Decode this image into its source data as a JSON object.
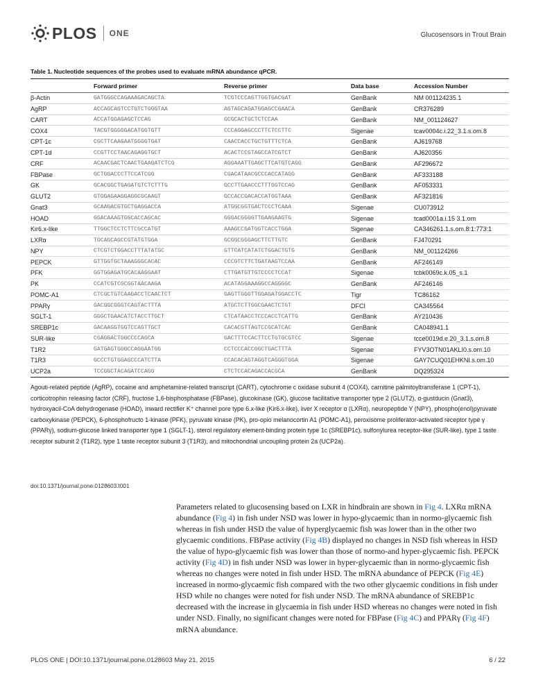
{
  "header": {
    "logo_text": "PLOS",
    "logo_suffix": "ONE",
    "running_title": "Glucosensors in Trout Brain"
  },
  "table": {
    "caption": "Table 1.  Nucleotide sequences of the probes used to evaluate mRNA abundance qPCR.",
    "headers": [
      "",
      "Forward primer",
      "Reverse primer",
      "Data base",
      "Accession Number"
    ],
    "rows": [
      [
        "β-Actin",
        "GATGGGCCAGAAAGACAGCTA",
        "TCGTCCCAGTTGGTGACGAT",
        "GenBank",
        "NM 001124235.1"
      ],
      [
        "AgRP",
        "ACCAGCAGTCCTGTCTGGGTAA",
        "AGTAGCAGATGGAGCCGAACA",
        "GenBank",
        "CR376289"
      ],
      [
        "CART",
        "ACCATGGAGAGCTCCAG",
        "GCGCACTGCTCTCCAA",
        "GenBank",
        "NM_001124627"
      ],
      [
        "COX4",
        "TACGTGGGGGACATGGTGTT",
        "CCCAGGAGCCCTTCTCCTTC",
        "Sigenae",
        "tcav0004c.i.22_3.1.s.om.8"
      ],
      [
        "CPT-1c",
        "CGCTTCAAGAATGGGGTGAT",
        "CAACCACCTGCTGTTTCTCA",
        "GenBank",
        "AJ619768"
      ],
      [
        "CPT-1d",
        "CCGTTCCTAACAGAGGTGCT",
        "ACACTCCGTAGCCATCGTCT",
        "GenBank",
        "AJ620356"
      ],
      [
        "CRF",
        "ACAACGACTCAACTGAAGATCTCG",
        "AGGAAATTGAGCTTCATGTCAGG",
        "GenBank",
        "AF296672"
      ],
      [
        "FBPase",
        "GCTGGACCCTTCCATCGG",
        "CGACATAACGCCCACCATAGG",
        "GenBank",
        "AF333188"
      ],
      [
        "GK",
        "GCACGGCTGAGATGTCTCTTTG",
        "GCCTTGAACCCTTTGGTCCAG",
        "GenBank",
        "AF053331"
      ],
      [
        "GLUT2",
        "GTGGAGAAGGAGGCGCAAGT",
        "GCCACCGACACCATGGTAAA",
        "GenBank",
        "AF321816"
      ],
      [
        "Gnat3",
        "GCAAGACGTGCTGAGGACCA",
        "ATGGCGGTGACTCCCTCAAA",
        "Sigenae",
        "CU073912"
      ],
      [
        "HOAD",
        "GGACAAAGTGGCACCAGCAC",
        "GGGACGGGGTTGAAGAAGTG",
        "Sigenae",
        "tcad0001a.i.15 3.1.om"
      ],
      [
        "Kir6.x-like",
        "TTGGCTCCTCTTCGCCATGT",
        "AAAGCCGATGGTCACCTGGA",
        "Sigenae",
        "CA346261.1.s.om.8:1:773:1"
      ],
      [
        "LXRα",
        "TGCAGCAGCCGTATGTGGA",
        "GCGGCGGGAGCTTCTTGTC",
        "GenBank",
        "FJ470291"
      ],
      [
        "NPY",
        "CTCGTCTGGACCTTTATATGC",
        "GTTCATCATATCTGGACTGTG",
        "GenBank",
        "NM_001124266"
      ],
      [
        "PEPCK",
        "GTTGGTGCTAAAGGGCACAC",
        "CCCGTCTTCTGATAAGTCCAA",
        "GenBank",
        "AF246149"
      ],
      [
        "PFK",
        "GGTGGAGATGCACAAGGAAT",
        "CTTGATGTTGTCCCCTCCAT",
        "Sigenae",
        "tcbk0069c.k.05_s.1"
      ],
      [
        "PK",
        "CCATCGTCGCGGTAACAAGA",
        "ACATAGGAAAGGCCAGGGGC",
        "GenBank",
        "AF246146"
      ],
      [
        "POMC-A1",
        "CTCGCTGTCAAGACCTCAACTCT",
        "GAGTTGGGTTGGAGATGGACCTC",
        "Tigr",
        "TC86162"
      ],
      [
        "PPARγ",
        "GACGGCGGGTCAGTACTTTA",
        "ATGCTCTTGGCGAACTCTGT",
        "DFCI",
        "CA345564"
      ],
      [
        "SGLT-1",
        "GGGCTGAACATCTACCTTGCT",
        "CTCATAACCTCCCACCTCATTG",
        "GenBank",
        "AY210436"
      ],
      [
        "SREBP1c",
        "GACAAGGTGGTCCAGTTGCT",
        "CACACGTTAGTCCGCATCAC",
        "GenBank",
        "CA048941.1"
      ],
      [
        "SUR-like",
        "CGAGGACTGGCCCCAGCA",
        "GACTTTCCACTTCCTGTGCGTCC",
        "Sigenae",
        "tcce0019d.e.20_3.1.s.om.8"
      ],
      [
        "T1R2",
        "GATGAGTGGGCCAGGAATGG",
        "CCTCCCACCGGCTGACTTTA",
        "Sigenae",
        "FYV3OTN01AKLI0.s.om.10"
      ],
      [
        "T1R3",
        "GCCCTGTGGAGCCCATCTTA",
        "CCACACAGTAGGTCAGGGTGGA",
        "Sigenae",
        "GAY7CUQ01EHKNI.s.om.10"
      ],
      [
        "UCP2a",
        "TCCGGCTACAGATCCAGG",
        "CTCTCCACAGACCACGCA",
        "GenBank",
        "DQ295324"
      ]
    ]
  },
  "footnote": "Agouti-related peptide (AgRP), cocaine and amphetamine-related transcript (CART), cytochrome c oxidase subunit 4 (COX4), carnitine palmitoyltransferase 1 (CPT-1), corticotrophin releasing factor (CRF), fructose 1,6-bisphosphatase (FBPase), glucokinase (GK), glucose facilitative transporter type 2 (GLUT2), α-gustducin (Gnat3), hydroxyacil-CoA dehydrogenase (HOAD), inward rectifier K⁺ channel pore type 6.x-like (Kir6.x-like), liver X receptor α (LXRα), neuropeptide Y (NPY), phospho(enol)pyruvate carboxykinase (PEPCK), 6-phosphofructo 1-kinase (PFK), pyruvate kinase (PK), pro-opio melanocortin A1 (POMC-A1), peroxisome proliferator-activated receptor type γ (PPARγ), sodium-glucose linked transporter type 1 (SGLT-1), sterol regulatory element-binding protein type 1c (SREBP1c), sulfonylurea receptor-like (SUR-like), type 1 taste receptor subunit 2 (T1R2), type 1 taste receptor subunit 3 (T1R3), and mitochondrial uncoupling protein 2a (UCP2a).",
  "doi": "doi:10.1371/journal.pone.0128603.t001",
  "body": {
    "s1": "Parameters related to glucosensing based on LXR in hindbrain are shown in ",
    "l1": "Fig 4",
    "s2": ". LXRα mRNA abundance (",
    "l2": "Fig 4",
    "s3": ") in fish under NSD was lower in hypo-glycaemic than in normo-glycaemic fish whereas in fish under HSD the value of hyperglycaemic fish was lower than in the other two glycaemic conditions. FBPase activity (",
    "l3": "Fig 4B",
    "s4": ") displayed no changes in NSD fish whereas in HSD the value of hypo-glycaemic fish was lower than those of normo-and hyper-glycaemic fish. PEPCK activity (",
    "l4": "Fig 4D",
    "s5": ") in fish under NSD was lower in hyper-glycaemic than in normo-glycaemic fish whereas no changes were noted in fish under HSD. The mRNA abundance of PEPCK (",
    "l5": "Fig 4E",
    "s6": ") increased in normo-glycaemic fish compared with the two other glycaemic conditions in fish under HSD while no changes were noted for fish under NSD. The mRNA abundance of SREBP1c decreased with the increase in glycaemia in fish under HSD whereas no changes were noted in fish under NSD. Finally, no significant changes were noted for FBPase (",
    "l6": "Fig 4C",
    "s7": ") and PPARγ (",
    "l7": "Fig 4F",
    "s8": ") mRNA abundance."
  },
  "footer": {
    "left": "PLOS ONE | DOI:10.1371/journal.pone.0128603   May 21, 2015",
    "right": "6 / 22"
  },
  "colors": {
    "link": "#2a6ab3",
    "sequence_text": "#6a6a6a"
  }
}
